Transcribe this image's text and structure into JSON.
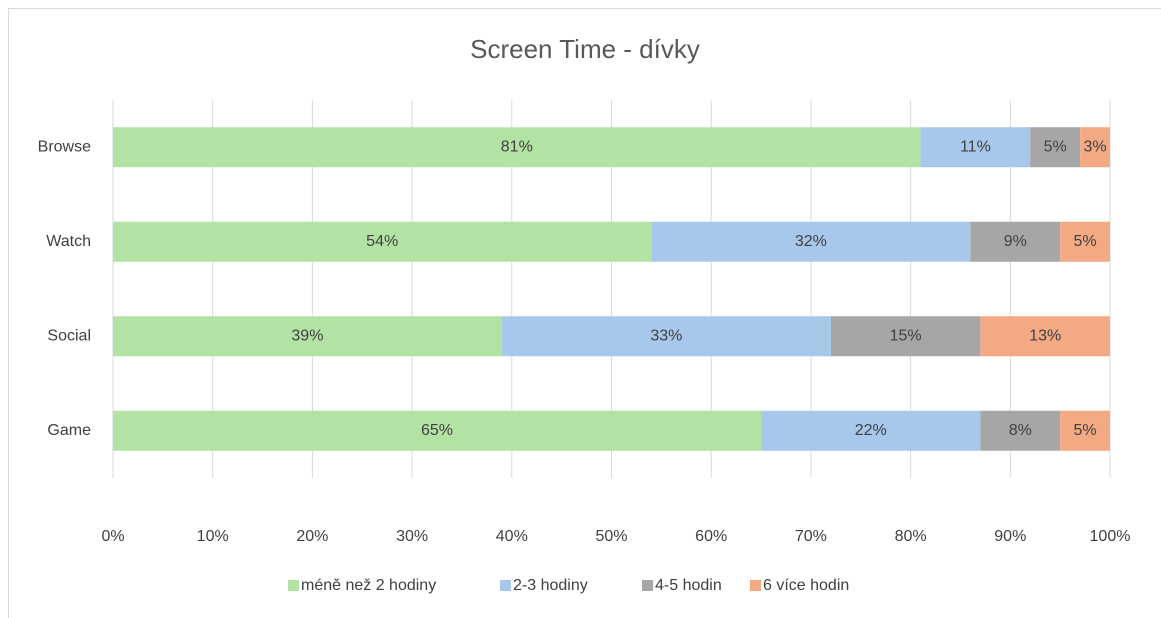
{
  "chart_data": {
    "type": "stacked-bar-horizontal",
    "title": "Screen Time - dívky",
    "categories": [
      "Browse",
      "Watch",
      "Social",
      "Game"
    ],
    "series": [
      {
        "name": "méně než 2 hodiny",
        "color": "#b3e2a5",
        "values": [
          81,
          54,
          39,
          65
        ],
        "value_labels": [
          "81%",
          "54%",
          "39%",
          "65%"
        ]
      },
      {
        "name": "2-3 hodiny",
        "color": "#a7c8eb",
        "values": [
          11,
          32,
          33,
          22
        ],
        "value_labels": [
          "11%",
          "32%",
          "33%",
          "22%"
        ]
      },
      {
        "name": "4-5 hodin",
        "color": "#a6a6a6",
        "values": [
          5,
          9,
          15,
          8
        ],
        "value_labels": [
          "5%",
          "9%",
          "15%",
          "8%"
        ]
      },
      {
        "name": "6 více hodin",
        "color": "#f2a984",
        "values": [
          3,
          5,
          13,
          5
        ],
        "value_labels": [
          "3%",
          "5%",
          "13%",
          "5%"
        ]
      }
    ],
    "xlim": [
      0,
      100
    ],
    "xticks": [
      {
        "value": 0,
        "label": "0%"
      },
      {
        "value": 10,
        "label": "10%"
      },
      {
        "value": 20,
        "label": "20%"
      },
      {
        "value": 30,
        "label": "30%"
      },
      {
        "value": 40,
        "label": "40%"
      },
      {
        "value": 50,
        "label": "50%"
      },
      {
        "value": 60,
        "label": "60%"
      },
      {
        "value": 70,
        "label": "70%"
      },
      {
        "value": 80,
        "label": "80%"
      },
      {
        "value": 90,
        "label": "90%"
      },
      {
        "value": 100,
        "label": "100%"
      }
    ],
    "grid": true,
    "legend": "bottom"
  }
}
